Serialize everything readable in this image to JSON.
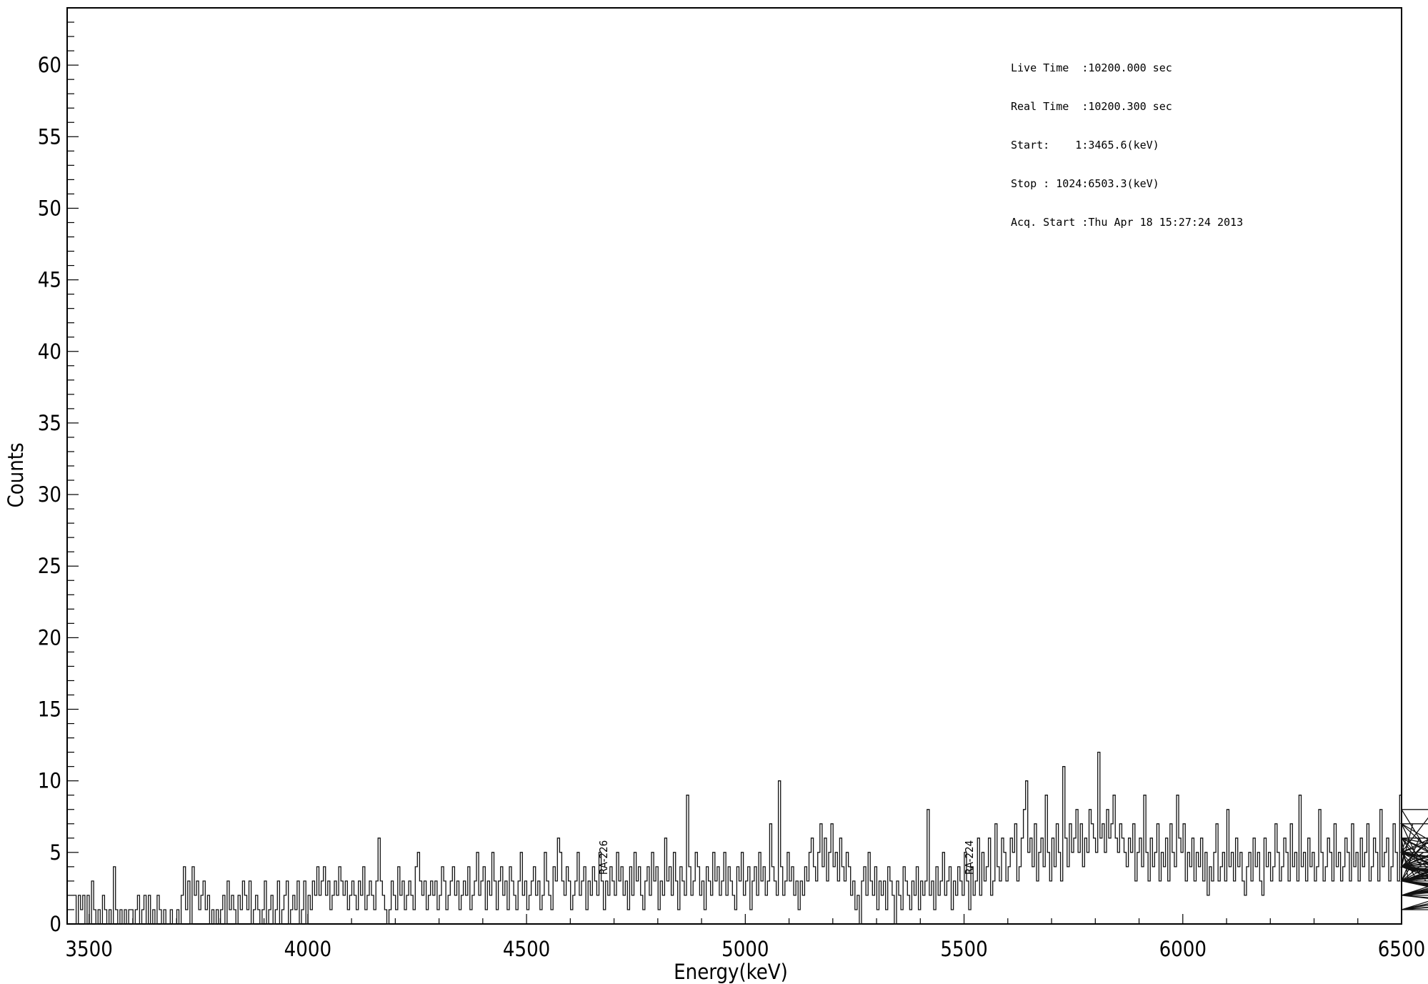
{
  "info_box": [
    "Live Time  :10200.000 sec",
    "Real Time  :10200.300 sec",
    "Start:    1:3465.6(keV)",
    "Stop : 1024:6503.3(keV)",
    "Acq. Start :Thu Apr 18 15:27:24 2013"
  ],
  "chart_data": {
    "type": "line",
    "title": "",
    "xlabel": "Energy(keV)",
    "ylabel": "Counts",
    "xlim": [
      3450,
      6500
    ],
    "ylim": [
      0,
      64
    ],
    "x_ticks": [
      3500,
      4000,
      4500,
      5000,
      5500,
      6000,
      6500
    ],
    "y_ticks": [
      0,
      5,
      10,
      15,
      20,
      25,
      30,
      35,
      40,
      45,
      50,
      55,
      60
    ],
    "grid": false,
    "legend": "none",
    "annotations": [
      {
        "text": "RA-226",
        "x": 4684
      },
      {
        "text": "RA-224",
        "x": 5520
      }
    ],
    "series": [
      {
        "x_start": 3465.6,
        "x_step": 5,
        "values": [
          2,
          0,
          2,
          1,
          2,
          0,
          2,
          0,
          3,
          1,
          0,
          1,
          0,
          2,
          1,
          0,
          1,
          0,
          4,
          1,
          0,
          1,
          0,
          1,
          0,
          1,
          1,
          0,
          1,
          2,
          0,
          1,
          2,
          0,
          2,
          0,
          1,
          0,
          2,
          1,
          0,
          1,
          0,
          0,
          1,
          0,
          0,
          1,
          0,
          2,
          4,
          1,
          3,
          0,
          4,
          2,
          3,
          1,
          2,
          3,
          1,
          2,
          0,
          1,
          0,
          1,
          0,
          1,
          2,
          0,
          3,
          1,
          2,
          1,
          0,
          2,
          1,
          3,
          2,
          1,
          3,
          0,
          1,
          2,
          1,
          0,
          1,
          3,
          0,
          1,
          2,
          0,
          1,
          3,
          0,
          1,
          2,
          3,
          0,
          1,
          2,
          1,
          3,
          0,
          1,
          3,
          0,
          2,
          1,
          3,
          2,
          4,
          2,
          3,
          4,
          2,
          3,
          1,
          2,
          3,
          2,
          4,
          3,
          2,
          3,
          1,
          2,
          3,
          2,
          1,
          3,
          2,
          4,
          1,
          2,
          3,
          2,
          1,
          3,
          6,
          3,
          2,
          1,
          0,
          1,
          3,
          2,
          1,
          4,
          2,
          3,
          1,
          2,
          3,
          2,
          1,
          4,
          5,
          3,
          2,
          3,
          1,
          2,
          3,
          2,
          3,
          1,
          2,
          4,
          3,
          1,
          2,
          3,
          4,
          2,
          3,
          1,
          2,
          3,
          2,
          4,
          1,
          2,
          3,
          5,
          2,
          3,
          4,
          1,
          3,
          2,
          5,
          3,
          1,
          3,
          4,
          2,
          3,
          1,
          4,
          3,
          2,
          1,
          3,
          5,
          2,
          3,
          1,
          2,
          3,
          4,
          2,
          3,
          1,
          2,
          5,
          3,
          2,
          1,
          4,
          3,
          6,
          5,
          3,
          2,
          4,
          3,
          1,
          2,
          3,
          5,
          2,
          3,
          4,
          1,
          3,
          2,
          4,
          3,
          2,
          5,
          3,
          1,
          3,
          2,
          4,
          3,
          2,
          5,
          3,
          4,
          2,
          3,
          1,
          4,
          2,
          5,
          3,
          4,
          2,
          1,
          3,
          4,
          2,
          5,
          3,
          4,
          1,
          3,
          2,
          6,
          3,
          4,
          2,
          5,
          3,
          1,
          4,
          3,
          2,
          9,
          4,
          2,
          3,
          5,
          4,
          2,
          3,
          1,
          4,
          3,
          2,
          5,
          3,
          4,
          2,
          3,
          5,
          2,
          4,
          3,
          2,
          1,
          4,
          3,
          5,
          2,
          3,
          4,
          1,
          3,
          4,
          2,
          5,
          3,
          4,
          2,
          3,
          7,
          4,
          3,
          2,
          10,
          4,
          2,
          3,
          5,
          3,
          4,
          2,
          3,
          1,
          3,
          2,
          4,
          3,
          5,
          6,
          4,
          3,
          5,
          7,
          4,
          6,
          3,
          5,
          7,
          4,
          5,
          3,
          6,
          4,
          3,
          5,
          4,
          2,
          3,
          1,
          2,
          0,
          3,
          4,
          2,
          5,
          3,
          2,
          4,
          1,
          3,
          2,
          3,
          1,
          4,
          3,
          2,
          0,
          3,
          2,
          1,
          4,
          3,
          2,
          1,
          3,
          2,
          4,
          1,
          3,
          2,
          3,
          8,
          2,
          3,
          1,
          4,
          2,
          3,
          5,
          2,
          3,
          4,
          1,
          3,
          2,
          4,
          3,
          2,
          5,
          3,
          1,
          4,
          2,
          3,
          6,
          2,
          5,
          3,
          4,
          6,
          2,
          3,
          7,
          4,
          3,
          6,
          5,
          3,
          4,
          6,
          5,
          7,
          3,
          4,
          6,
          8,
          10,
          5,
          6,
          4,
          7,
          3,
          5,
          6,
          4,
          9,
          5,
          3,
          6,
          4,
          7,
          5,
          3,
          11,
          6,
          4,
          7,
          5,
          6,
          8,
          5,
          7,
          4,
          6,
          5,
          8,
          7,
          6,
          5,
          12,
          6,
          7,
          5,
          8,
          6,
          7,
          9,
          6,
          5,
          7,
          6,
          5,
          4,
          6,
          5,
          7,
          3,
          5,
          6,
          4,
          9,
          5,
          3,
          6,
          4,
          5,
          7,
          3,
          5,
          4,
          6,
          3,
          7,
          5,
          4,
          9,
          6,
          5,
          7,
          3,
          5,
          4,
          6,
          3,
          5,
          4,
          6,
          3,
          5,
          2,
          4,
          3,
          5,
          7,
          3,
          4,
          5,
          3,
          8,
          4,
          5,
          3,
          6,
          4,
          5,
          3,
          2,
          4,
          5,
          3,
          6,
          4,
          5,
          3,
          2,
          6,
          4,
          5,
          3,
          4,
          7,
          5,
          3,
          4,
          6,
          5,
          3,
          7,
          4,
          5,
          3,
          9,
          4,
          5,
          3,
          6,
          4,
          5,
          3,
          4,
          8,
          5,
          3,
          4,
          6,
          5,
          3,
          7,
          4,
          5,
          3,
          4,
          6,
          5,
          3,
          7,
          4,
          5,
          3,
          6,
          4,
          5,
          7,
          3,
          4,
          6,
          5,
          3,
          8,
          4,
          5,
          6,
          3,
          4,
          7,
          5,
          3,
          9,
          4,
          5,
          6,
          3,
          4,
          7,
          5,
          3,
          6,
          4,
          5,
          3,
          4,
          6,
          5,
          8,
          4,
          5,
          6,
          3,
          4,
          7,
          5,
          3,
          6,
          4,
          5,
          7,
          3,
          4,
          6,
          5,
          3,
          4,
          2,
          3,
          5,
          4,
          3,
          2,
          4,
          3,
          5,
          4,
          2,
          3,
          4,
          5,
          3,
          2,
          4,
          3,
          5,
          2,
          4,
          3,
          2,
          1,
          3,
          4,
          2,
          3,
          1,
          4,
          5,
          3,
          2,
          4,
          3,
          1,
          2,
          3,
          4,
          2,
          1,
          3,
          2,
          4,
          3,
          1,
          2
        ]
      }
    ]
  }
}
